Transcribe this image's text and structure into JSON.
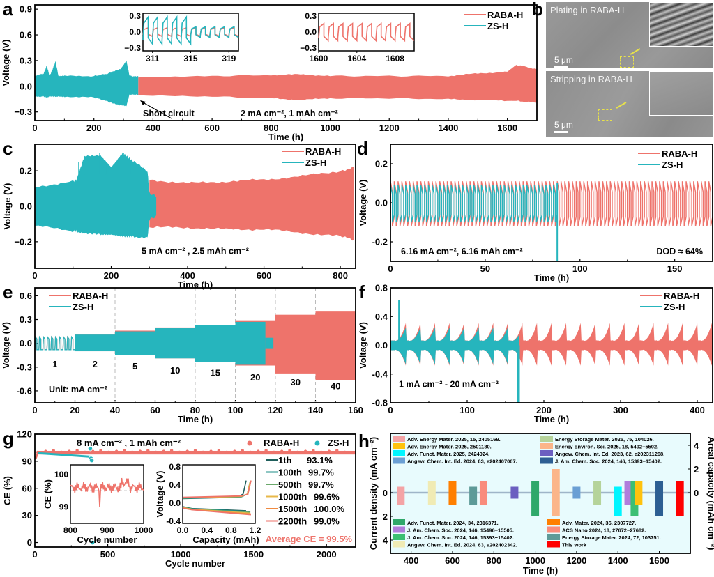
{
  "colors": {
    "raba": "#ee736b",
    "zs": "#26b5bd",
    "axis": "#000000"
  },
  "legend": {
    "raba": "RABA-H",
    "zs": "ZS-H"
  },
  "chart_data": [
    {
      "id": "a",
      "panel_letter": "a",
      "type": "area",
      "title": "",
      "xlabel": "Time (h)",
      "ylabel": "Voltage (V)",
      "xlim": [
        0,
        1700
      ],
      "ylim": [
        -0.4,
        0.95
      ],
      "xticks": [
        0,
        200,
        400,
        600,
        800,
        1000,
        1200,
        1400,
        1600
      ],
      "yticks": [
        -0.3,
        0.0,
        0.3,
        0.6,
        0.9
      ],
      "ytick_labels": [
        "−0.3",
        "0.0",
        "0.3",
        "0.6",
        "0.9"
      ],
      "legend": "top-right",
      "annotations": [
        "Short circuit",
        "2 mA cm⁻², 1 mAh cm⁻²"
      ],
      "series": [
        {
          "name": "ZS-H",
          "x": [
            0,
            30,
            40,
            50,
            60,
            70,
            80,
            100,
            200,
            250,
            290,
            310,
            320,
            330,
            350
          ],
          "upper": [
            0.12,
            0.15,
            0.24,
            0.12,
            0.2,
            0.29,
            0.12,
            0.12,
            0.12,
            0.15,
            0.2,
            0.3,
            0.13,
            0.12,
            0.12
          ],
          "lower": [
            -0.12,
            -0.12,
            -0.13,
            -0.12,
            -0.12,
            -0.12,
            -0.12,
            -0.12,
            -0.13,
            -0.18,
            -0.22,
            -0.23,
            -0.1,
            -0.1,
            -0.1
          ]
        },
        {
          "name": "RABA-H",
          "x": [
            350,
            600,
            800,
            900,
            1000,
            1200,
            1400,
            1500,
            1600,
            1630,
            1700
          ],
          "upper": [
            0.11,
            0.12,
            0.13,
            0.14,
            0.12,
            0.12,
            0.12,
            0.15,
            0.17,
            0.25,
            0.2
          ],
          "lower": [
            -0.11,
            -0.12,
            -0.14,
            -0.16,
            -0.14,
            -0.14,
            -0.15,
            -0.16,
            -0.17,
            -0.17,
            -0.19
          ]
        }
      ],
      "insets": [
        {
          "xlim": [
            310,
            320
          ],
          "xticks": [
            311,
            315,
            319
          ],
          "ylim": [
            -0.35,
            0.35
          ],
          "yticks": [
            "0.3",
            "0.0",
            "−0.3"
          ],
          "series": [
            "RABA-H",
            "ZS-H"
          ]
        },
        {
          "xlim": [
            1600,
            1610
          ],
          "xticks": [
            1600,
            1604,
            1608
          ],
          "ylim": [
            -0.35,
            0.35
          ],
          "yticks": [
            "0.3",
            "0.0",
            "−0.3"
          ],
          "series": [
            "RABA-H"
          ]
        }
      ]
    },
    {
      "id": "c",
      "panel_letter": "c",
      "type": "area",
      "xlabel": "Time (h)",
      "ylabel": "Voltage (V)",
      "xlim": [
        0,
        840
      ],
      "ylim": [
        -0.35,
        0.35
      ],
      "xticks": [
        0,
        200,
        400,
        600,
        800
      ],
      "yticks": [
        -0.2,
        0.0,
        0.2
      ],
      "ytick_labels": [
        "−0.2",
        "0.0",
        "0.2"
      ],
      "legend": "top-right",
      "annotations": [
        "5 mA cm⁻² , 2.5 mAh cm⁻²"
      ],
      "series": [
        {
          "name": "ZS-H",
          "x": [
            0,
            100,
            110,
            130,
            170,
            200,
            230,
            260,
            295,
            300,
            318
          ],
          "upper": [
            0.11,
            0.14,
            0.15,
            0.28,
            0.29,
            0.22,
            0.3,
            0.25,
            0.2,
            0.08,
            0.05
          ],
          "lower": [
            -0.11,
            -0.14,
            -0.14,
            -0.15,
            -0.16,
            -0.16,
            -0.17,
            -0.17,
            -0.18,
            -0.08,
            -0.05
          ]
        },
        {
          "name": "RABA-H",
          "x": [
            300,
            400,
            500,
            600,
            700,
            800,
            835
          ],
          "upper": [
            0.15,
            0.13,
            0.14,
            0.15,
            0.17,
            0.2,
            0.22
          ],
          "lower": [
            -0.12,
            -0.12,
            -0.13,
            -0.13,
            -0.15,
            -0.17,
            -0.19
          ]
        }
      ]
    },
    {
      "id": "d",
      "panel_letter": "d",
      "type": "line",
      "xlabel": "Time (h)",
      "ylabel": "Voltage (V)",
      "xlim": [
        0,
        170
      ],
      "ylim": [
        -0.3,
        0.3
      ],
      "xticks": [
        0,
        50,
        100,
        150
      ],
      "yticks": [
        -0.2,
        0.0,
        0.2
      ],
      "ytick_labels": [
        "-0.2",
        "0.0",
        "0.2"
      ],
      "legend": "top-right",
      "annotations": [
        "6.16 mA cm⁻², 6.16 mAh cm⁻²",
        "DOD ≈ 64%"
      ],
      "series": [
        {
          "name": "RABA-H",
          "x_end": 170,
          "cycle_period_h": 2,
          "upper": 0.11,
          "lower": -0.12
        },
        {
          "name": "ZS-H",
          "x_end": 88,
          "cycle_period_h": 2,
          "upper": 0.09,
          "lower": -0.1,
          "failure_at": 88
        }
      ]
    },
    {
      "id": "e",
      "panel_letter": "e",
      "type": "area",
      "xlabel": "Time (h)",
      "ylabel": "Voltage (V)",
      "xlim": [
        0,
        160
      ],
      "ylim": [
        -0.75,
        0.7
      ],
      "xticks": [
        0,
        20,
        40,
        60,
        80,
        100,
        120,
        140,
        160
      ],
      "yticks": [
        -0.6,
        -0.3,
        0.0,
        0.3,
        0.6
      ],
      "ytick_labels": [
        "-0.6",
        "-0.3",
        "0.0",
        "0.3",
        "0.6"
      ],
      "legend": "top-left",
      "annotations": [
        "Unit: mA cm⁻²"
      ],
      "rate_labels": [
        "1",
        "2",
        "5",
        "10",
        "15",
        "20",
        "30",
        "40"
      ],
      "series": [
        {
          "name": "RABA-H",
          "segments": [
            [
              0,
              20,
              0.08,
              -0.08
            ],
            [
              20,
              40,
              0.11,
              -0.1
            ],
            [
              40,
              60,
              0.16,
              -0.15
            ],
            [
              60,
              80,
              0.2,
              -0.19
            ],
            [
              80,
              100,
              0.23,
              -0.24
            ],
            [
              100,
              120,
              0.29,
              -0.28
            ],
            [
              120,
              140,
              0.36,
              -0.38
            ],
            [
              140,
              160,
              0.4,
              -0.46
            ]
          ]
        },
        {
          "name": "ZS-H",
          "segments": [
            [
              0,
              20,
              0.08,
              -0.08
            ],
            [
              20,
              40,
              0.11,
              -0.1
            ],
            [
              40,
              60,
              0.15,
              -0.15
            ],
            [
              60,
              80,
              0.19,
              -0.19
            ],
            [
              80,
              100,
              0.23,
              -0.24
            ],
            [
              100,
              115,
              0.27,
              -0.27
            ],
            [
              115,
              119,
              0.07,
              -0.07
            ]
          ]
        }
      ]
    },
    {
      "id": "f",
      "panel_letter": "f",
      "type": "area",
      "xlabel": "Time (h)",
      "ylabel": "Voltage (V)",
      "xlim": [
        0,
        420
      ],
      "ylim": [
        -0.8,
        0.8
      ],
      "xticks": [
        0,
        100,
        200,
        300,
        400
      ],
      "yticks": [
        -0.8,
        -0.4,
        0.0,
        0.4,
        0.8
      ],
      "ytick_labels": [
        "-0.8",
        "-0.4",
        "0.0",
        "0.4",
        "0.8"
      ],
      "legend": "top-right",
      "annotations": [
        "1 mA cm⁻² - 20 mA cm⁻²"
      ],
      "series": [
        {
          "name": "RABA-H",
          "x_start": 0,
          "x_end": 420,
          "period_h": 19,
          "peak": 0.35,
          "trough": -0.32
        },
        {
          "name": "ZS-H",
          "x_start": 0,
          "x_end": 168,
          "period_h": 19,
          "peak": 0.28,
          "trough": -0.3,
          "spike_at": 11,
          "spike_value": 0.63,
          "failure_at": 165
        }
      ]
    },
    {
      "id": "g",
      "panel_letter": "g",
      "type": "scatter",
      "xlabel": "Cycle number",
      "ylabel": "CE (%)",
      "xlim": [
        0,
        2200
      ],
      "ylim": [
        -5,
        120
      ],
      "xticks": [
        0,
        500,
        1000,
        1500,
        2000
      ],
      "yticks": [
        0,
        30,
        60,
        90,
        120
      ],
      "legend": "top-right",
      "annotations": [
        "8 mA cm⁻² , 1 mAh cm⁻²",
        "Average CE = 99.5%"
      ],
      "series": [
        {
          "name": "RABA-H",
          "x_range": [
            1,
            2200
          ],
          "mean": 99.5,
          "start": 93.1
        },
        {
          "name": "ZS-H",
          "x_range": [
            1,
            390
          ],
          "mean": 97,
          "points": [
            [
              380,
              104
            ],
            [
              385,
              93
            ],
            [
              390,
              91
            ],
            [
              395,
              0
            ]
          ]
        }
      ],
      "insets": [
        {
          "xlabel": "Cycle number",
          "ylabel": "CE (%)",
          "xlim": [
            800,
            1000
          ],
          "xticks": [
            800,
            900,
            1000
          ],
          "ylim": [
            98.5,
            100.3
          ],
          "yticks": [
            99,
            100
          ],
          "reference_line": 99.5
        },
        {
          "xlabel": "Capacity (mAh)",
          "ylabel": "Voltage (V)",
          "xlim": [
            0,
            1.2
          ],
          "xticks": [
            "0.0",
            "0.4",
            "0.8",
            "1.2"
          ],
          "ylim": [
            -0.45,
            0.85
          ],
          "yticks": [
            "0.8",
            "0.4",
            "0.0",
            "-0.4"
          ],
          "curves": [
            {
              "label": "1th",
              "ce": "93.1%",
              "color": "#1f5f5b",
              "end_cap": 1.05
            },
            {
              "label": "100th",
              "ce": "99.7%",
              "color": "#1f8f88",
              "end_cap": 1.12
            },
            {
              "label": "500th",
              "ce": "99.7%",
              "color": "#6aa86a",
              "end_cap": 1.12
            },
            {
              "label": "1000th",
              "ce": "99.6%",
              "color": "#e8b84a",
              "end_cap": 1.12
            },
            {
              "label": "1500th",
              "ce": "100.0%",
              "color": "#f08a40",
              "end_cap": 1.13
            },
            {
              "label": "2200th",
              "ce": "99.0%",
              "color": "#ee736b",
              "end_cap": 1.13
            }
          ]
        }
      ]
    },
    {
      "id": "h",
      "panel_letter": "h",
      "type": "bar",
      "xlabel": "Time (h)",
      "ylabel": "Current density (mA cm⁻²)",
      "y2label": "Areal capacity (mAh cm⁻²)",
      "xlim": [
        300,
        1750
      ],
      "xticks": [
        400,
        600,
        800,
        1000,
        1200,
        1400,
        1600
      ],
      "ylim_left": [
        5,
        -5
      ],
      "yticks_left": [
        0,
        2,
        4
      ],
      "yticks_right": [
        0,
        2,
        4
      ],
      "legend": "inside",
      "bars": [
        {
          "ref": "Adv. Energy Mater. 2025, 15, 2405169.",
          "color": "#f4a3a5",
          "time": 350,
          "current": 1,
          "capacity": 0.5
        },
        {
          "ref": "Angew. Chem. Int. Ed. 2024, 63, e202402342.",
          "color": "#f0ebb4",
          "time": 500,
          "current": 1,
          "capacity": 1
        },
        {
          "ref": "Adv. Mater. 2024, 36, 2307727.",
          "color": "#ff7f00",
          "time": 600,
          "current": 1,
          "capacity": 1
        },
        {
          "ref": "Energy Storage Mater. 2024, 72, 103751.",
          "color": "#5e9a98",
          "time": 700,
          "current": 1,
          "capacity": 0.5
        },
        {
          "ref": "ACS Nano 2024, 18, 27672−27682.",
          "color": "#f98c7c",
          "time": 750,
          "current": 1,
          "capacity": 1
        },
        {
          "ref": "Angew. Chem. Int. Ed. 2023, 62, e202311268.",
          "color": "#6b5fc0",
          "time": 900,
          "current": 0.5,
          "capacity": 0.5
        },
        {
          "ref": "Adv. Funct. Mater. 2024, 34, 2316371.",
          "color": "#2fa86a",
          "time": 1000,
          "current": 2,
          "capacity": 1
        },
        {
          "ref": "Energy Environ. Sci. 2025, 18, 5492−5502.",
          "color": "#fbb589",
          "time": 1100,
          "current": 2,
          "capacity": 2
        },
        {
          "ref": "Angew. Chem. Int. Ed. 2024, 63, e202407067.",
          "color": "#6a9fd4",
          "time": 1200,
          "current": 0.5,
          "capacity": 0.5
        },
        {
          "ref": "Energy Storage Mater. 2025, 75, 104026.",
          "color": "#b5d39a",
          "time": 1300,
          "current": 1,
          "capacity": 1
        },
        {
          "ref": "Adv. Funct. Mater. 2025, 2424024.",
          "color": "#00f5ff",
          "time": 1400,
          "current": 2,
          "capacity": 0.5
        },
        {
          "ref": "J. Am. Chem. Soc. 2024, 146, 15496−15505.",
          "color": "#b07ddc",
          "time": 1450,
          "current": 1,
          "capacity": 1
        },
        {
          "ref": "J. Am. Chem. Soc. 2024, 146, 15393−15402.",
          "color": "#3cbf73",
          "time": 1480,
          "current": 2,
          "capacity": 1
        },
        {
          "ref": "Adv. Energy Mater. 2025, 2501180.",
          "color": "#ffc20e",
          "time": 1500,
          "current": 1,
          "capacity": 1
        },
        {
          "ref": "J. Am. Chem. Soc. 2024, 146, 15393−15402.",
          "color": "#2d5f93",
          "time": 1600,
          "current": 2,
          "capacity": 1
        },
        {
          "ref": "This work",
          "color": "#ff0000",
          "time": 1700,
          "current": 2,
          "capacity": 1
        }
      ],
      "legend_top": [
        {
          "label": "Adv. Energy Mater. 2025, 15, 2405169.",
          "color": "#f4a3a5"
        },
        {
          "label": "Adv. Energy Mater. 2025, 2501180.",
          "color": "#ffc20e"
        },
        {
          "label": "Adv. Funct. Mater. 2025, 2424024.",
          "color": "#00f5ff"
        },
        {
          "label": "Angew. Chem. Int. Ed. 2024, 63, e202407067.",
          "color": "#6a9fd4"
        },
        {
          "label": "Energy Storage Mater. 2025, 75, 104026.",
          "color": "#b5d39a"
        },
        {
          "label": "Energy Environ. Sci. 2025, 18, 5492−5502.",
          "color": "#fbb589"
        },
        {
          "label": "Angew. Chem. Int. Ed. 2023, 62, e202311268.",
          "color": "#6b5fc0"
        },
        {
          "label": "J. Am. Chem. Soc. 2024, 146, 15393−15402.",
          "color": "#2d5f93"
        }
      ],
      "legend_bottom": [
        {
          "label": "Adv. Funct. Mater. 2024, 34, 2316371.",
          "color": "#2fa86a"
        },
        {
          "label": "J. Am. Chem. Soc. 2024, 146, 15496−15505.",
          "color": "#b07ddc"
        },
        {
          "label": "J. Am. Chem. Soc. 2024, 146, 15393−15402.",
          "color": "#3cbf73"
        },
        {
          "label": "Angew. Chem. Int. Ed. 2024, 63, e202402342.",
          "color": "#f0ebb4"
        },
        {
          "label": "Adv. Mater. 2024, 36, 2307727.",
          "color": "#ff7f00"
        },
        {
          "label": "ACS Nano 2024, 18, 27672−27682.",
          "color": "#f98c7c"
        },
        {
          "label": "Energy Storage Mater. 2024, 72, 103751.",
          "color": "#5e9a98"
        },
        {
          "label": "This work",
          "color": "#ff0000"
        }
      ]
    }
  ],
  "sem": {
    "panel_letter": "b",
    "top_label": "Plating in RABA-H",
    "bottom_label": "Stripping in RABA-H",
    "scale_top": "5 μm",
    "scale_bottom": "5 μm"
  }
}
